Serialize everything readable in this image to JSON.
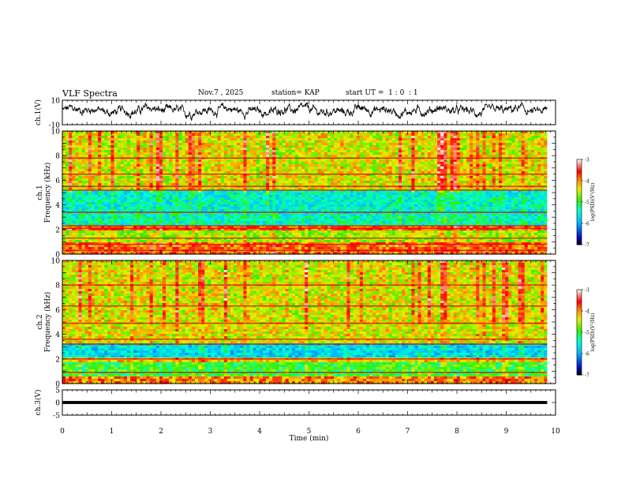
{
  "header": {
    "title": "VLF Spectra",
    "date": "Nov.7 , 2025",
    "station": "station= KAP",
    "start_ut": "start UT =  1 : 0  : 1"
  },
  "chart_data": [
    {
      "type": "line",
      "panel": "ch1-waveform",
      "ylabel": "ch.1(V)",
      "ylim": [
        -10,
        10
      ],
      "xlim": [
        0,
        10
      ],
      "yticks": [
        "10",
        "-10"
      ],
      "x_end": 9.83,
      "baseline": 0,
      "noise_amplitude": 3.5,
      "colors": {
        "line": "#000000"
      }
    },
    {
      "type": "heatmap",
      "panel": "ch1-spectrogram",
      "ylabel": "ch.1\nFrequency (kHz)",
      "ylim": [
        0,
        10
      ],
      "xlim": [
        0,
        10
      ],
      "x_end": 9.83,
      "yticks": [
        "0",
        "2",
        "4",
        "6",
        "8",
        "10"
      ],
      "zrange": [
        -7,
        -3
      ],
      "colorbar_label": "log(PSD)(V²/Hz)",
      "colorbar_ticks": [
        "-3",
        "-4",
        "-5",
        "-6",
        "-7"
      ],
      "bands_khz": [
        {
          "from": 0.0,
          "to": 1.0,
          "level": -3.9
        },
        {
          "from": 1.0,
          "to": 2.0,
          "level": -4.6
        },
        {
          "from": 2.0,
          "to": 2.3,
          "level": -3.8
        },
        {
          "from": 2.3,
          "to": 3.3,
          "level": -5.4
        },
        {
          "from": 3.3,
          "to": 5.2,
          "level": -5.5
        },
        {
          "from": 5.2,
          "to": 10.0,
          "level": -4.4
        }
      ],
      "lines_khz": [
        0.3,
        0.8,
        1.3,
        2.1,
        2.3,
        3.4,
        5.2,
        5.5,
        6.5,
        7.8
      ]
    },
    {
      "type": "heatmap",
      "panel": "ch2-spectrogram",
      "ylabel": "ch.2\nFrequency (kHz)",
      "ylim": [
        0,
        10
      ],
      "xlim": [
        0,
        10
      ],
      "x_end": 9.83,
      "yticks": [
        "0",
        "2",
        "4",
        "6",
        "8",
        "10"
      ],
      "zrange": [
        -7,
        -3
      ],
      "colorbar_label": "log(PSD)(V²/Hz)",
      "colorbar_ticks": [
        "-3",
        "-4",
        "-5",
        "-6",
        "-7"
      ],
      "bands_khz": [
        {
          "from": 0.0,
          "to": 0.6,
          "level": -4.0
        },
        {
          "from": 0.6,
          "to": 1.8,
          "level": -5.0
        },
        {
          "from": 1.8,
          "to": 2.2,
          "level": -4.3
        },
        {
          "from": 2.2,
          "to": 3.2,
          "level": -5.7
        },
        {
          "from": 3.2,
          "to": 10.0,
          "level": -4.4
        }
      ],
      "lines_khz": [
        0.9,
        2.0,
        3.2,
        3.6,
        4.9,
        6.3,
        8.0
      ]
    },
    {
      "type": "line",
      "panel": "ch3-waveform",
      "ylabel": "ch.3(V)",
      "ylim": [
        -5,
        5
      ],
      "xlim": [
        0,
        10
      ],
      "yticks": [
        "5",
        "0",
        "-5"
      ],
      "x_end": 9.83,
      "baseline": 0,
      "bar_thickness_v": 1.2,
      "colors": {
        "line": "#000000"
      }
    }
  ],
  "xaxis": {
    "label": "Time (min)",
    "ticks": [
      "0",
      "1",
      "2",
      "3",
      "4",
      "5",
      "6",
      "7",
      "8",
      "9",
      "10"
    ]
  }
}
